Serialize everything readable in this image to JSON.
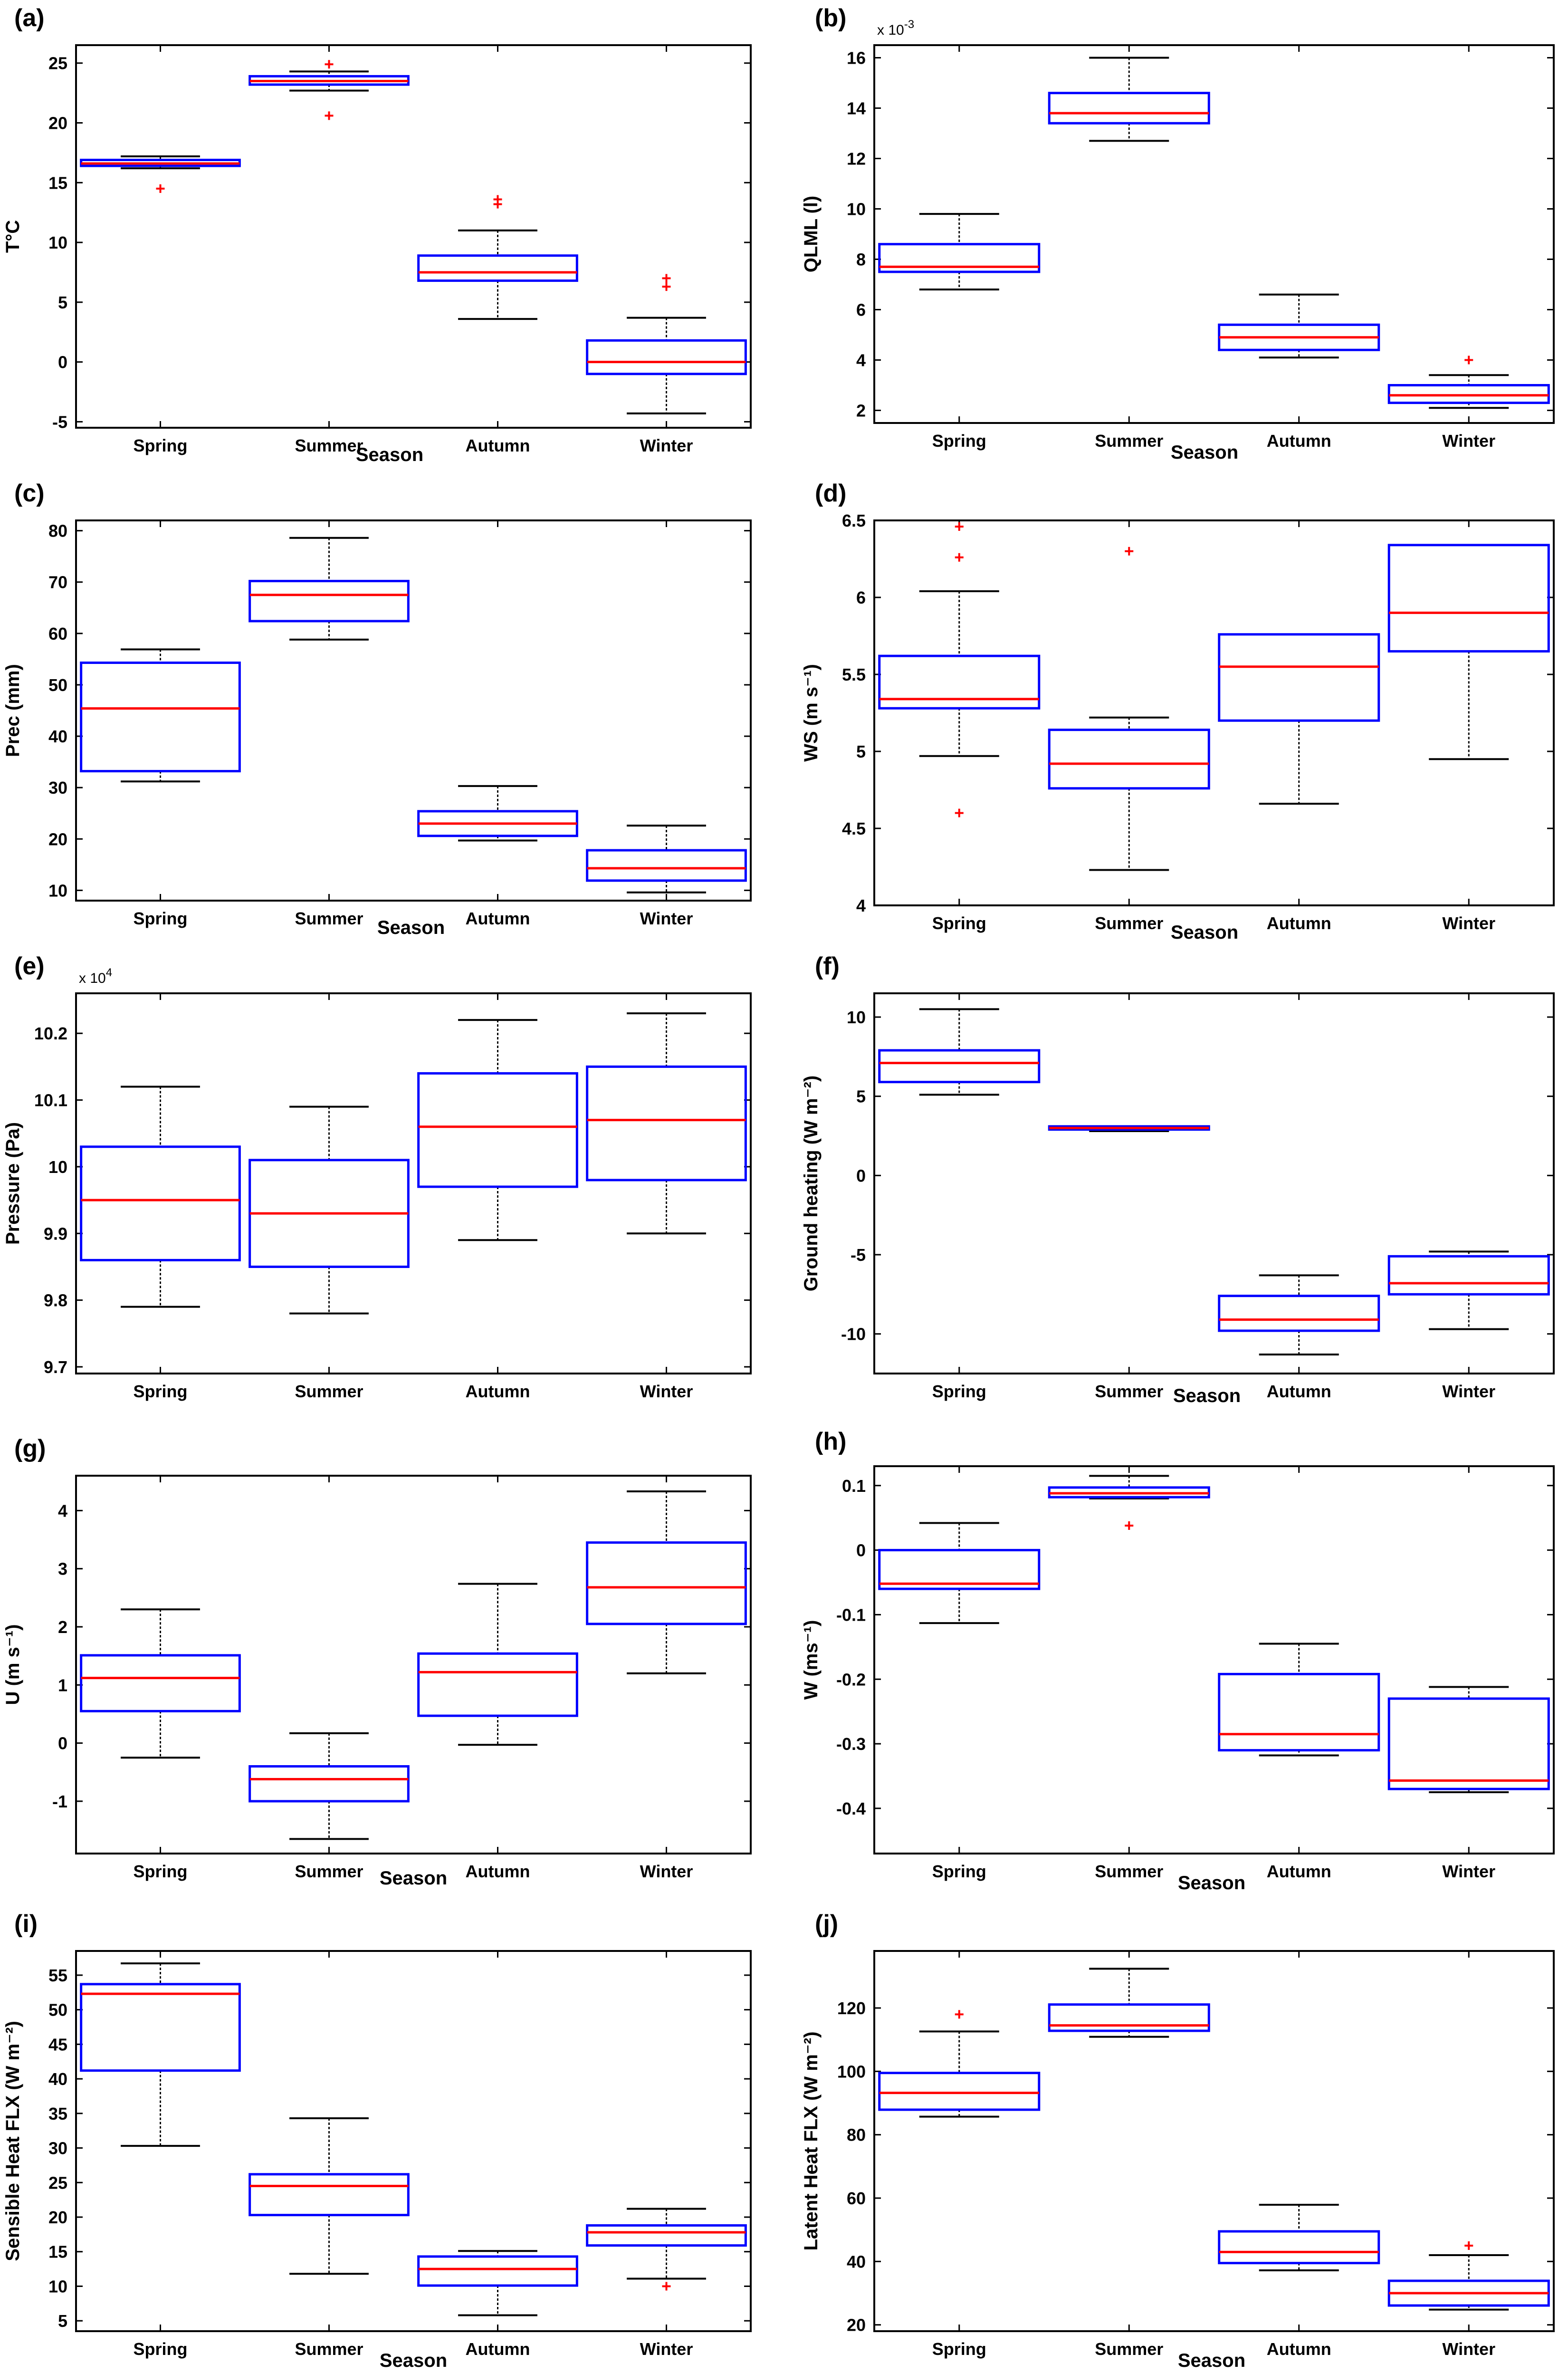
{
  "chart_data": [
    {
      "type": "box",
      "panel_label": "(a)",
      "ylabel": "T°C",
      "xlabel": "Season",
      "categories": [
        "Spring",
        "Summer",
        "Autumn",
        "Winter"
      ],
      "ylim": [
        -5.5,
        26.5
      ],
      "yticks": [
        -5,
        0,
        5,
        10,
        15,
        20,
        25
      ],
      "boxes": [
        {
          "category": "Spring",
          "min": 16.2,
          "q1": 16.4,
          "median": 16.6,
          "q3": 16.9,
          "max": 17.2
        },
        {
          "category": "Summer",
          "min": 22.7,
          "q1": 23.2,
          "median": 23.5,
          "q3": 23.9,
          "max": 24.3
        },
        {
          "category": "Autumn",
          "min": 3.6,
          "q1": 6.8,
          "median": 7.5,
          "q3": 8.9,
          "max": 11.0
        },
        {
          "category": "Winter",
          "min": -4.3,
          "q1": -1.0,
          "median": 0.0,
          "q3": 1.8,
          "max": 3.7
        }
      ],
      "outliers": [
        {
          "category": "Spring",
          "value": 14.5
        },
        {
          "category": "Summer",
          "value": 24.9
        },
        {
          "category": "Summer",
          "value": 20.6
        },
        {
          "category": "Autumn",
          "value": 13.6
        },
        {
          "category": "Autumn",
          "value": 13.2
        },
        {
          "category": "Winter",
          "value": 7.0
        },
        {
          "category": "Winter",
          "value": 6.3
        }
      ]
    },
    {
      "type": "box",
      "panel_label": "(b)",
      "ylabel": "QLML (l)",
      "xlabel": "Season",
      "multiplier_label": "x 10",
      "multiplier_exponent": "-3",
      "categories": [
        "Spring",
        "Summer",
        "Autumn",
        "Winter"
      ],
      "ylim": [
        1.5,
        16.5
      ],
      "yticks": [
        2,
        4,
        6,
        8,
        10,
        12,
        14,
        16
      ],
      "boxes": [
        {
          "category": "Spring",
          "min": 6.8,
          "q1": 7.5,
          "median": 7.7,
          "q3": 8.6,
          "max": 9.8
        },
        {
          "category": "Summer",
          "min": 12.7,
          "q1": 13.4,
          "median": 13.8,
          "q3": 14.6,
          "max": 16.0
        },
        {
          "category": "Autumn",
          "min": 4.1,
          "q1": 4.4,
          "median": 4.9,
          "q3": 5.4,
          "max": 6.6
        },
        {
          "category": "Winter",
          "min": 2.1,
          "q1": 2.3,
          "median": 2.6,
          "q3": 3.0,
          "max": 3.4
        }
      ],
      "outliers": [
        {
          "category": "Winter",
          "value": 4.0
        }
      ]
    },
    {
      "type": "box",
      "panel_label": "(c)",
      "ylabel": "Prec (mm)",
      "xlabel": "Season",
      "categories": [
        "Spring",
        "Summer",
        "Autumn",
        "Winter"
      ],
      "ylim": [
        8,
        82
      ],
      "yticks": [
        10,
        20,
        30,
        40,
        50,
        60,
        70,
        80
      ],
      "boxes": [
        {
          "category": "Spring",
          "min": 31.2,
          "q1": 33.2,
          "median": 45.4,
          "q3": 54.3,
          "max": 56.9
        },
        {
          "category": "Summer",
          "min": 58.8,
          "q1": 62.4,
          "median": 67.5,
          "q3": 70.2,
          "max": 78.6
        },
        {
          "category": "Autumn",
          "min": 19.7,
          "q1": 20.6,
          "median": 23.0,
          "q3": 25.4,
          "max": 30.3
        },
        {
          "category": "Winter",
          "min": 9.6,
          "q1": 11.9,
          "median": 14.3,
          "q3": 17.8,
          "max": 22.6
        }
      ],
      "outliers": []
    },
    {
      "type": "box",
      "panel_label": "(d)",
      "ylabel": "WS (m s⁻¹)",
      "xlabel": "Season",
      "categories": [
        "Spring",
        "Summer",
        "Autumn",
        "Winter"
      ],
      "ylim": [
        4.0,
        6.5
      ],
      "yticks": [
        4,
        4.5,
        5,
        5.5,
        6,
        6.5
      ],
      "boxes": [
        {
          "category": "Spring",
          "min": 4.97,
          "q1": 5.28,
          "median": 5.34,
          "q3": 5.62,
          "max": 6.04
        },
        {
          "category": "Summer",
          "min": 4.23,
          "q1": 4.76,
          "median": 4.92,
          "q3": 5.14,
          "max": 5.22
        },
        {
          "category": "Autumn",
          "min": 4.66,
          "q1": 5.2,
          "median": 5.55,
          "q3": 5.76,
          "max": 5.76
        },
        {
          "category": "Winter",
          "min": 4.95,
          "q1": 5.65,
          "median": 5.9,
          "q3": 6.34,
          "max": 6.34
        }
      ],
      "outliers": [
        {
          "category": "Spring",
          "value": 6.46
        },
        {
          "category": "Spring",
          "value": 6.26
        },
        {
          "category": "Spring",
          "value": 4.6
        },
        {
          "category": "Summer",
          "value": 6.3
        }
      ]
    },
    {
      "type": "box",
      "panel_label": "(e)",
      "ylabel": "Pressure (Pa)",
      "xlabel": "",
      "multiplier_label": "x 10",
      "multiplier_exponent": "4",
      "categories": [
        "Spring",
        "Summer",
        "Autumn",
        "Winter"
      ],
      "ylim": [
        9.69,
        10.26
      ],
      "yticks": [
        9.7,
        9.8,
        9.9,
        10,
        10.1,
        10.2
      ],
      "boxes": [
        {
          "category": "Spring",
          "min": 9.79,
          "q1": 9.86,
          "median": 9.95,
          "q3": 10.03,
          "max": 10.12
        },
        {
          "category": "Summer",
          "min": 9.78,
          "q1": 9.85,
          "median": 9.93,
          "q3": 10.01,
          "max": 10.09
        },
        {
          "category": "Autumn",
          "min": 9.89,
          "q1": 9.97,
          "median": 10.06,
          "q3": 10.14,
          "max": 10.22
        },
        {
          "category": "Winter",
          "min": 9.9,
          "q1": 9.98,
          "median": 10.07,
          "q3": 10.15,
          "max": 10.23
        }
      ],
      "outliers": []
    },
    {
      "type": "box",
      "panel_label": "(f)",
      "ylabel": "Ground heating (W m⁻²)",
      "xlabel": "Season",
      "categories": [
        "Spring",
        "Summer",
        "Autumn",
        "Winter"
      ],
      "ylim": [
        -12.5,
        11.5
      ],
      "yticks": [
        -10,
        -5,
        0,
        5,
        10
      ],
      "boxes": [
        {
          "category": "Spring",
          "min": 5.1,
          "q1": 5.9,
          "median": 7.1,
          "q3": 7.9,
          "max": 10.5
        },
        {
          "category": "Summer",
          "min": 2.8,
          "q1": 2.9,
          "median": 3.0,
          "q3": 3.1,
          "max": 3.1
        },
        {
          "category": "Autumn",
          "min": -11.3,
          "q1": -9.8,
          "median": -9.1,
          "q3": -7.6,
          "max": -6.3
        },
        {
          "category": "Winter",
          "min": -9.7,
          "q1": -7.5,
          "median": -6.8,
          "q3": -5.1,
          "max": -4.8
        }
      ],
      "outliers": []
    },
    {
      "type": "box",
      "panel_label": "(g)",
      "ylabel": "U (m s⁻¹)",
      "xlabel": "Season",
      "categories": [
        "Spring",
        "Summer",
        "Autumn",
        "Winter"
      ],
      "ylim": [
        -1.9,
        4.6
      ],
      "yticks": [
        -1,
        0,
        1,
        2,
        3,
        4
      ],
      "boxes": [
        {
          "category": "Spring",
          "min": -0.25,
          "q1": 0.55,
          "median": 1.12,
          "q3": 1.51,
          "max": 2.3
        },
        {
          "category": "Summer",
          "min": -1.65,
          "q1": -1.0,
          "median": -0.62,
          "q3": -0.4,
          "max": 0.17
        },
        {
          "category": "Autumn",
          "min": -0.03,
          "q1": 0.47,
          "median": 1.22,
          "q3": 1.54,
          "max": 2.74
        },
        {
          "category": "Winter",
          "min": 1.2,
          "q1": 2.05,
          "median": 2.68,
          "q3": 3.45,
          "max": 4.33
        }
      ],
      "outliers": []
    },
    {
      "type": "box",
      "panel_label": "(h)",
      "ylabel": "W (ms⁻¹)",
      "xlabel": "Season",
      "categories": [
        "Spring",
        "Summer",
        "Autumn",
        "Winter"
      ],
      "ylim": [
        -0.47,
        0.13
      ],
      "yticks": [
        -0.4,
        -0.3,
        -0.2,
        -0.1,
        0,
        0.1
      ],
      "boxes": [
        {
          "category": "Spring",
          "min": -0.113,
          "q1": -0.06,
          "median": -0.052,
          "q3": 0.0,
          "max": 0.042
        },
        {
          "category": "Summer",
          "min": 0.08,
          "q1": 0.082,
          "median": 0.088,
          "q3": 0.097,
          "max": 0.115
        },
        {
          "category": "Autumn",
          "min": -0.318,
          "q1": -0.31,
          "median": -0.285,
          "q3": -0.192,
          "max": -0.145
        },
        {
          "category": "Winter",
          "min": -0.375,
          "q1": -0.37,
          "median": -0.357,
          "q3": -0.23,
          "max": -0.212
        }
      ],
      "outliers": [
        {
          "category": "Summer",
          "value": 0.038
        }
      ]
    },
    {
      "type": "box",
      "panel_label": "(i)",
      "ylabel": "Sensible Heat FLX (W m⁻²)",
      "xlabel": "Season",
      "categories": [
        "Spring",
        "Summer",
        "Autumn",
        "Winter"
      ],
      "ylim": [
        3.5,
        58.5
      ],
      "yticks": [
        5,
        10,
        15,
        20,
        25,
        30,
        35,
        40,
        45,
        50,
        55
      ],
      "boxes": [
        {
          "category": "Spring",
          "min": 30.3,
          "q1": 41.2,
          "median": 52.3,
          "q3": 53.7,
          "max": 56.7
        },
        {
          "category": "Summer",
          "min": 11.8,
          "q1": 20.3,
          "median": 24.5,
          "q3": 26.2,
          "max": 34.3
        },
        {
          "category": "Autumn",
          "min": 5.8,
          "q1": 10.1,
          "median": 12.5,
          "q3": 14.3,
          "max": 15.1
        },
        {
          "category": "Winter",
          "min": 11.1,
          "q1": 15.9,
          "median": 17.8,
          "q3": 18.8,
          "max": 21.2
        }
      ],
      "outliers": [
        {
          "category": "Winter",
          "value": 10.0
        }
      ]
    },
    {
      "type": "box",
      "panel_label": "(j)",
      "ylabel": "Latent Heat FLX (W m⁻²)",
      "xlabel": "Season",
      "categories": [
        "Spring",
        "Summer",
        "Autumn",
        "Winter"
      ],
      "ylim": [
        18,
        138
      ],
      "yticks": [
        20,
        40,
        60,
        80,
        100,
        120
      ],
      "boxes": [
        {
          "category": "Spring",
          "min": 85.7,
          "q1": 87.9,
          "median": 93.2,
          "q3": 99.5,
          "max": 112.6
        },
        {
          "category": "Summer",
          "min": 110.9,
          "q1": 112.8,
          "median": 114.5,
          "q3": 121.1,
          "max": 132.4
        },
        {
          "category": "Autumn",
          "min": 37.2,
          "q1": 39.5,
          "median": 43.0,
          "q3": 49.5,
          "max": 57.9
        },
        {
          "category": "Winter",
          "min": 24.8,
          "q1": 26.1,
          "median": 30.0,
          "q3": 33.9,
          "max": 42.0
        }
      ],
      "outliers": [
        {
          "category": "Spring",
          "value": 118.0
        },
        {
          "category": "Winter",
          "value": 45.0
        }
      ]
    }
  ],
  "colors": {
    "box": "#0000ff",
    "median": "#ff0000",
    "whisker": "#000000",
    "outlier": "#ff0000"
  }
}
